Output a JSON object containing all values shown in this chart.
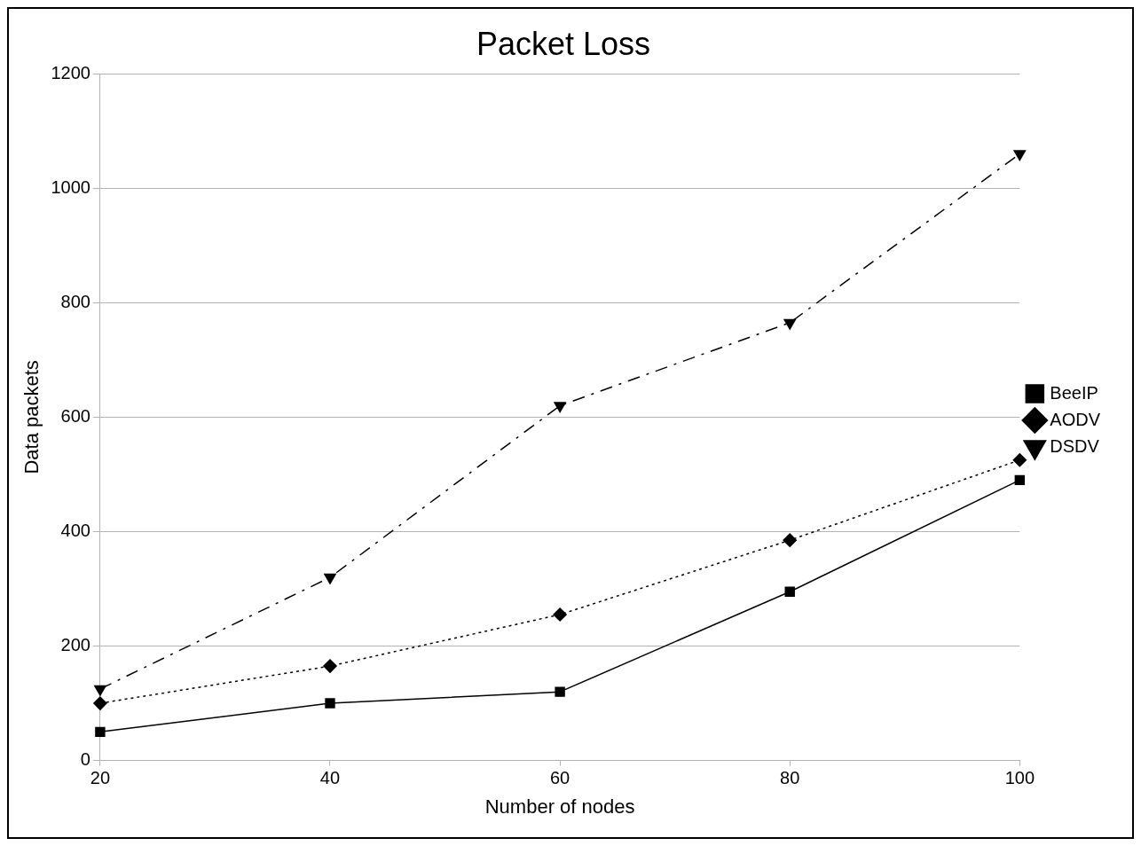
{
  "chart_data": {
    "type": "line",
    "title": "Packet Loss",
    "xlabel": "Number of nodes",
    "ylabel": "Data packets",
    "x": [
      20,
      40,
      60,
      80,
      100
    ],
    "series": [
      {
        "name": "BeeIP",
        "color": "#000000",
        "marker": "square",
        "line_style": "solid",
        "values": [
          50,
          100,
          120,
          295,
          490
        ]
      },
      {
        "name": "AODV",
        "color": "#000000",
        "marker": "diamond",
        "line_style": "dotted",
        "values": [
          100,
          165,
          255,
          385,
          525
        ]
      },
      {
        "name": "DSDV",
        "color": "#000000",
        "marker": "triangle",
        "line_style": "dashed",
        "values": [
          125,
          320,
          620,
          765,
          1060
        ]
      }
    ],
    "xlim": [
      20,
      100
    ],
    "xticks": [
      20,
      40,
      60,
      80,
      100
    ],
    "ylim": [
      0,
      1200
    ],
    "yticks": [
      0,
      200,
      400,
      600,
      800,
      1000,
      1200
    ],
    "grid": "y",
    "legend": "right"
  }
}
